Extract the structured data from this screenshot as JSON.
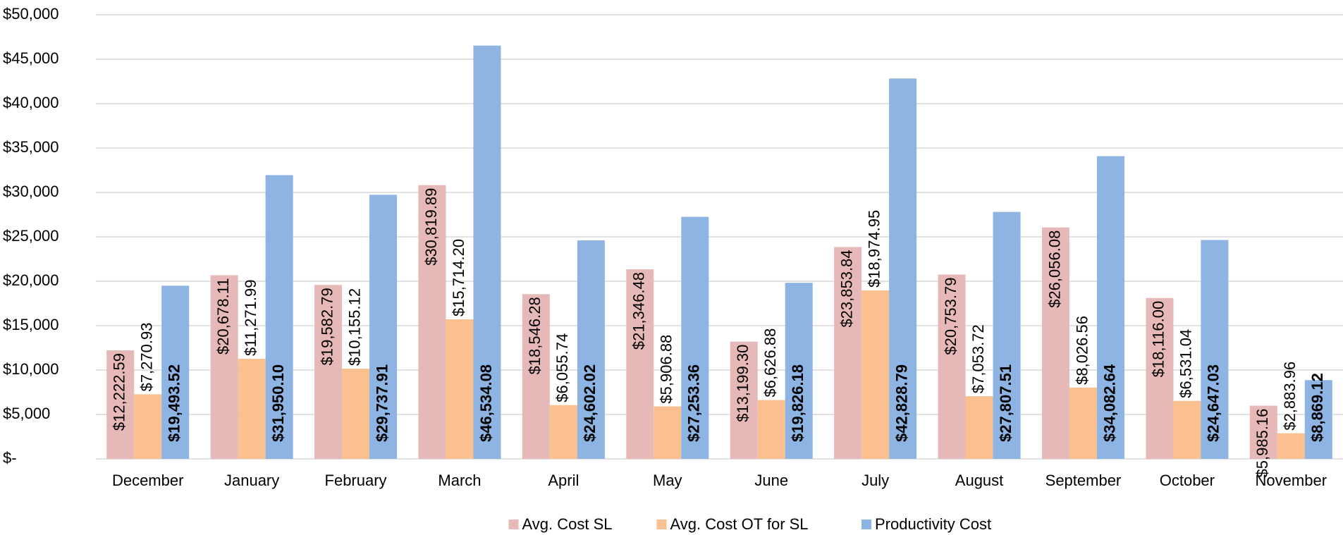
{
  "chart_data": {
    "type": "bar",
    "categories": [
      "December",
      "January",
      "February",
      "March",
      "April",
      "May",
      "June",
      "July",
      "August",
      "September",
      "October",
      "November"
    ],
    "series": [
      {
        "name": "Avg. Cost SL",
        "color": "#e6b9b8",
        "values": [
          12222.59,
          20678.11,
          19582.79,
          30819.89,
          18546.28,
          21346.48,
          13199.3,
          23853.84,
          20753.79,
          26056.08,
          18116.0,
          5985.16
        ],
        "value_labels": [
          "$12,222.59",
          "$20,678.11",
          "$19,582.79",
          "$30,819.89",
          "$18,546.28",
          "$21,346.48",
          "$13,199.30",
          "$23,853.84",
          "$20,753.79",
          "$26,056.08",
          "$18,116.00",
          "$5,985.16"
        ]
      },
      {
        "name": "Avg. Cost OT for SL",
        "color": "#fac090",
        "values": [
          7270.93,
          11271.99,
          10155.12,
          15714.2,
          6055.74,
          5906.88,
          6626.88,
          18974.95,
          7053.72,
          8026.56,
          6531.04,
          2883.96
        ],
        "value_labels": [
          "$7,270.93",
          "$11,271.99",
          "$10,155.12",
          "$15,714.20",
          "$6,055.74",
          "$5,906.88",
          "$6,626.88",
          "$18,974.95",
          "$7,053.72",
          "$8,026.56",
          "$6,531.04",
          "$2,883.96"
        ]
      },
      {
        "name": "Productivity Cost",
        "color": "#8eb4e3",
        "values": [
          19493.52,
          31950.1,
          29737.91,
          46534.08,
          24602.02,
          27253.36,
          19826.18,
          42828.79,
          27807.51,
          34082.64,
          24647.03,
          8869.12
        ],
        "value_labels": [
          "$19,493.52",
          "$31,950.10",
          "$29,737.91",
          "$46,534.08",
          "$24,602.02",
          "$27,253.36",
          "$19,826.18",
          "$42,828.79",
          "$27,807.51",
          "$34,082.64",
          "$24,647.03",
          "$8,869.12"
        ]
      }
    ],
    "ylim": [
      0,
      50000
    ],
    "yticks": [
      {
        "value": 0,
        "label": "$-"
      },
      {
        "value": 5000,
        "label": "$5,000"
      },
      {
        "value": 10000,
        "label": "$10,000"
      },
      {
        "value": 15000,
        "label": "$15,000"
      },
      {
        "value": 20000,
        "label": "$20,000"
      },
      {
        "value": 25000,
        "label": "$25,000"
      },
      {
        "value": 30000,
        "label": "$30,000"
      },
      {
        "value": 35000,
        "label": "$35,000"
      },
      {
        "value": 40000,
        "label": "$40,000"
      },
      {
        "value": 45000,
        "label": "$45,000"
      },
      {
        "value": 50000,
        "label": "$50,000"
      }
    ],
    "grid": true,
    "legend": "bottom"
  }
}
